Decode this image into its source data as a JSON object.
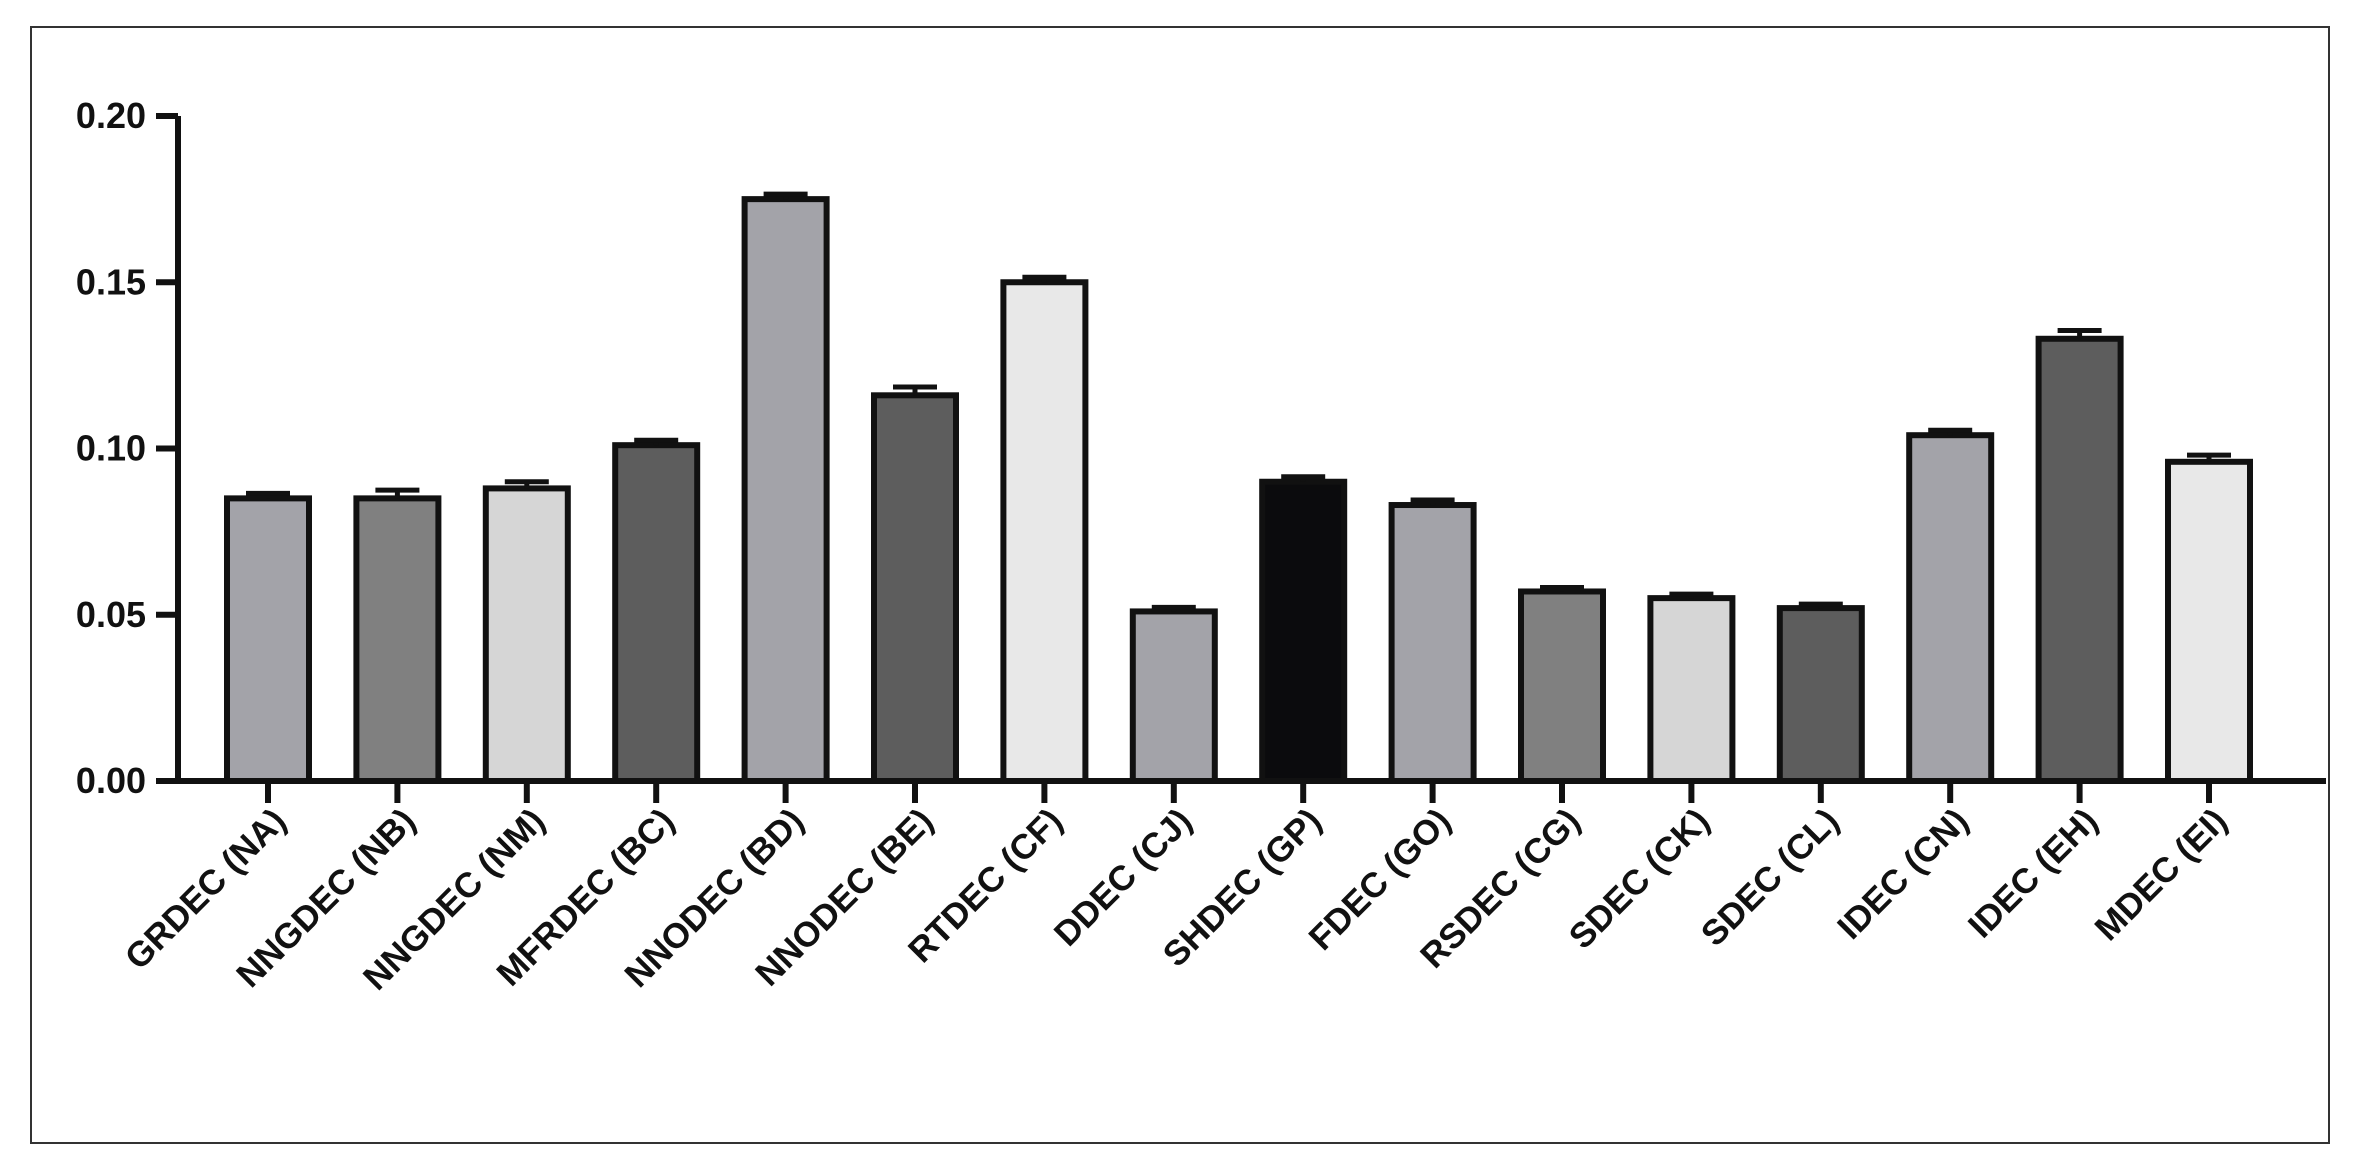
{
  "chart_data": {
    "type": "bar",
    "title": "",
    "xlabel": "",
    "ylabel": "",
    "ylim": [
      0,
      0.2
    ],
    "y_ticks": [
      "0.00",
      "0.05",
      "0.10",
      "0.15",
      "0.20"
    ],
    "y_tick_values": [
      0,
      0.05,
      0.1,
      0.15,
      0.2
    ],
    "grid": false,
    "error_bars": true,
    "categories": [
      "GRDEC (NA)",
      "NNGDEC (NB)",
      "NNGDEC (NM)",
      "MFRDEC (BC)",
      "NNODEC (BD)",
      "NNODEC (BE)",
      "RTDEC (CF)",
      "DDEC (CJ)",
      "SHDEC (GP)",
      "FDEC (GO)",
      "RSDEC (CG)",
      "SDEC (CK)",
      "SDEC (CL)",
      "IDEC (CN)",
      "IDEC (EH)",
      "MDEC (EI)"
    ],
    "values": [
      0.085,
      0.085,
      0.088,
      0.101,
      0.175,
      0.116,
      0.15,
      0.051,
      0.09,
      0.083,
      0.057,
      0.055,
      0.052,
      0.104,
      0.133,
      0.096
    ],
    "errors": [
      0.0015,
      0.0025,
      0.002,
      0.0015,
      0.0015,
      0.0025,
      0.0015,
      0.0012,
      0.0015,
      0.0015,
      0.0012,
      0.0012,
      0.0012,
      0.0015,
      0.0025,
      0.002
    ],
    "colors": [
      "#a3a3a9",
      "#808080",
      "#d6d6d6",
      "#5d5d5d",
      "#a3a3a9",
      "#5d5d5d",
      "#e8e8e8",
      "#a3a3a9",
      "#0b0b0d",
      "#a3a3a9",
      "#808080",
      "#d6d6d6",
      "#5d5d5d",
      "#a3a3a9",
      "#5d5d5d",
      "#e8e8e8"
    ]
  }
}
